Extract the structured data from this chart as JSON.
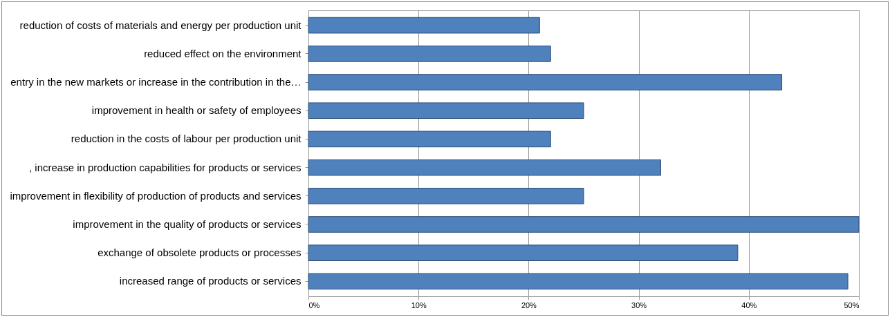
{
  "chart_data": {
    "type": "bar",
    "orientation": "horizontal",
    "categories": [
      "reduction of costs of materials and energy per production unit",
      "reduced effect on the environment",
      "entry in the new markets or increase in the contribution in the…",
      "improvement in health or safety of employees",
      "reduction in the costs of labour per production unit",
      ", increase in production capabilities for products or services",
      "improvement in flexibility of production of products and services",
      "improvement in the quality of products or services",
      "exchange of obsolete products or processes",
      "increased range of products or services"
    ],
    "values": [
      21,
      22,
      43,
      25,
      22,
      32,
      25,
      50,
      39,
      49
    ],
    "color": "#4f81bd",
    "xlim": [
      0,
      50
    ],
    "xticks": [
      {
        "value": 0,
        "label": "0%"
      },
      {
        "value": 10,
        "label": "10%"
      },
      {
        "value": 20,
        "label": "20%"
      },
      {
        "value": 30,
        "label": "30%"
      },
      {
        "value": 40,
        "label": "40%"
      },
      {
        "value": 50,
        "label": "50%"
      }
    ],
    "grid": "x"
  }
}
